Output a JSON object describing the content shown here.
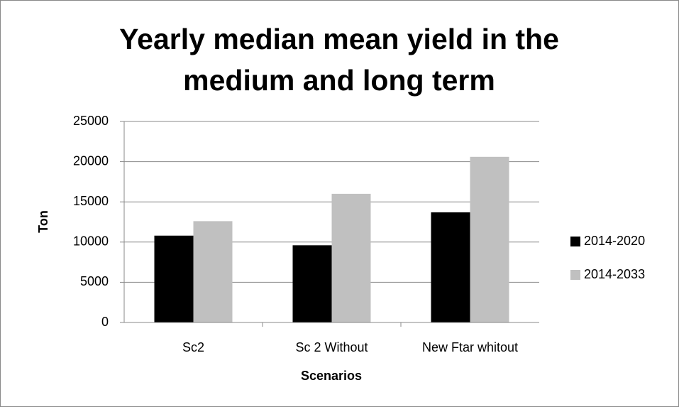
{
  "chart_data": {
    "type": "bar",
    "title": "Yearly median mean yield in the medium and long term",
    "x_label": "Scenarios",
    "y_label": "Ton",
    "categories": [
      "Sc2",
      "Sc 2 Without",
      "New Ftar whitout"
    ],
    "series": [
      {
        "name": "2014-2020",
        "color": "#000000",
        "values": [
          10800,
          9600,
          13700
        ]
      },
      {
        "name": "2014-2033",
        "color": "#c0c0c0",
        "values": [
          12600,
          16000,
          20600
        ]
      }
    ],
    "ylim": [
      0,
      25000
    ],
    "yticks": [
      0,
      5000,
      10000,
      15000,
      20000,
      25000
    ],
    "grid": true,
    "legend": "right"
  }
}
